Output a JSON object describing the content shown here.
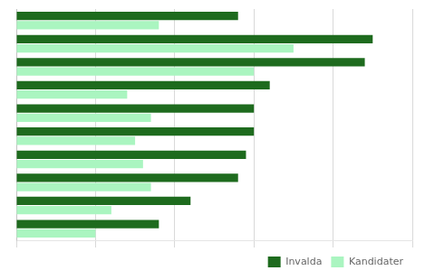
{
  "chart_data": {
    "type": "bar",
    "orientation": "horizontal",
    "categories": [
      null,
      null,
      null,
      null,
      null,
      null,
      null,
      null,
      null,
      null
    ],
    "series": [
      {
        "name": "Invalda",
        "color": "#1e6b1e",
        "values": [
          28,
          45,
          44,
          32,
          30,
          30,
          29,
          28,
          22,
          18
        ]
      },
      {
        "name": "Kandidater",
        "color": "#aaf5c0",
        "values": [
          18,
          35,
          30,
          14,
          17,
          15,
          16,
          17,
          12,
          10
        ]
      }
    ],
    "xlim": [
      0,
      50
    ],
    "xticks": [
      0,
      10,
      20,
      30,
      40,
      50
    ],
    "grid": true,
    "legend": "lower right",
    "tick_labels": false
  }
}
